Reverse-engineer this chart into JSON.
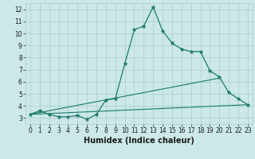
{
  "xlabel": "Humidex (Indice chaleur)",
  "ylabel": "",
  "background_color": "#cce8e8",
  "grid_color": "#aacccc",
  "line_color": "#1a7a6a",
  "xlim": [
    -0.5,
    23.5
  ],
  "ylim": [
    2.5,
    12.5
  ],
  "yticks": [
    3,
    4,
    5,
    6,
    7,
    8,
    9,
    10,
    11,
    12
  ],
  "xticks": [
    0,
    1,
    2,
    3,
    4,
    5,
    6,
    7,
    8,
    9,
    10,
    11,
    12,
    13,
    14,
    15,
    16,
    17,
    18,
    19,
    20,
    21,
    22,
    23
  ],
  "curve_x": [
    0,
    1,
    2,
    3,
    4,
    5,
    6,
    7,
    8,
    9,
    10,
    11,
    12,
    13,
    14,
    15,
    16,
    17,
    18,
    19,
    20,
    21,
    22,
    23
  ],
  "curve_y": [
    3.3,
    3.6,
    3.3,
    3.1,
    3.1,
    3.2,
    2.9,
    3.3,
    4.5,
    4.6,
    7.5,
    10.3,
    10.6,
    12.2,
    10.2,
    9.2,
    8.7,
    8.5,
    8.5,
    6.9,
    6.4,
    5.1,
    4.6,
    4.1
  ],
  "line1_x": [
    0,
    20
  ],
  "line1_y": [
    3.3,
    6.3
  ],
  "line2_x": [
    0,
    23
  ],
  "line2_y": [
    3.3,
    4.1
  ],
  "title_fontsize": 7,
  "axis_fontsize": 7,
  "tick_fontsize": 5.5
}
